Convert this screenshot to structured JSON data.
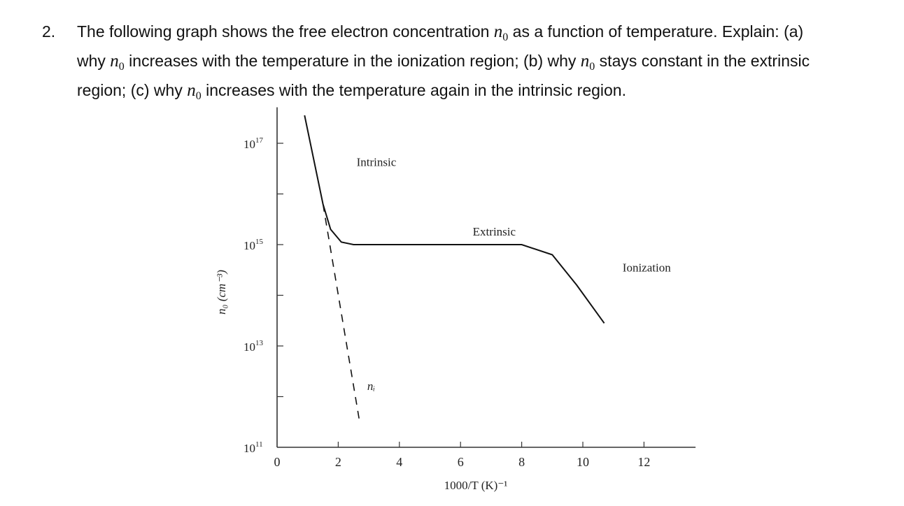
{
  "question": {
    "number": "2.",
    "line1": {
      "pre": "The following graph shows the free electron concentration ",
      "var": "n",
      "sub": "0",
      "post": " as a function of temperature. Explain: (a)"
    },
    "line2": {
      "pre": "why ",
      "var1": "n",
      "sub1": "0",
      "mid": " increases with the temperature in the ionization region; (b) why ",
      "var2": "n",
      "sub2": "0",
      "post": " stays constant in the extrinsic"
    },
    "line3": {
      "pre": "region; (c) why ",
      "var": "n",
      "sub": "0",
      "post": " increases with the temperature again in the intrinsic region."
    }
  },
  "chart_data": {
    "type": "line",
    "xlabel": "1000/T (K)⁻¹",
    "ylabel": "n₀ (cm⁻³)",
    "xlim": [
      0,
      13
    ],
    "ylim_log10": [
      11,
      17.6
    ],
    "x_ticks": [
      0,
      2,
      4,
      6,
      8,
      10,
      12
    ],
    "x_tick_labels": [
      "0",
      "2",
      "4",
      "6",
      "8",
      "10",
      "12"
    ],
    "y_ticks_log10": [
      11,
      13,
      15,
      17
    ],
    "y_tick_labels": [
      {
        "base": "10",
        "exp": "11"
      },
      {
        "base": "10",
        "exp": "13"
      },
      {
        "base": "10",
        "exp": "15"
      },
      {
        "base": "10",
        "exp": "17"
      }
    ],
    "y_minor_ticks_log10": [
      12,
      14,
      16
    ],
    "grid": false,
    "series": [
      {
        "style": "solid",
        "points": [
          [
            0.9,
            17.55
          ],
          [
            1.5,
            15.8
          ],
          [
            1.75,
            15.3
          ],
          [
            2.1,
            15.05
          ],
          [
            2.5,
            15.0
          ],
          [
            8.0,
            15.0
          ],
          [
            9.0,
            14.8
          ],
          [
            9.8,
            14.2
          ],
          [
            10.7,
            13.45
          ]
        ]
      },
      {
        "name": "nᵢ",
        "style": "dashed",
        "points": [
          [
            1.5,
            15.8
          ],
          [
            2.7,
            11.5
          ]
        ]
      }
    ],
    "annotations": [
      {
        "text": "Intrinsic",
        "x": 2.6,
        "y_log10": 16.55
      },
      {
        "text": "Extrinsic",
        "x": 6.4,
        "y_log10": 15.18
      },
      {
        "text": "Ionization",
        "x": 11.3,
        "y_log10": 14.47
      },
      {
        "text": "nᵢ",
        "x": 2.95,
        "y_log10": 12.13
      }
    ]
  }
}
